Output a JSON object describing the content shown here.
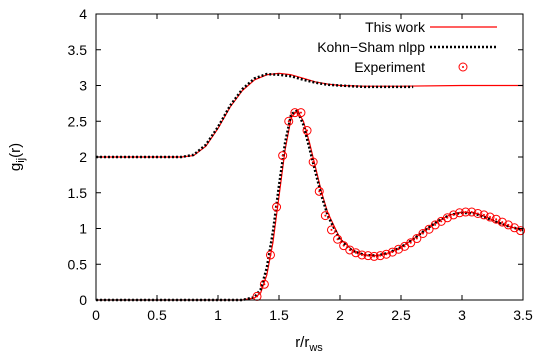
{
  "chart_data": {
    "type": "line",
    "xlabel_main": "r/r",
    "xlabel_sub": "ws",
    "ylabel_main": "g",
    "ylabel_sub": "ij",
    "ylabel_tail": "(r)",
    "xlim": [
      0,
      3.5
    ],
    "ylim": [
      0,
      4
    ],
    "x_ticks": [
      0,
      0.5,
      1,
      1.5,
      2,
      2.5,
      3,
      3.5
    ],
    "y_ticks": [
      0,
      0.5,
      1,
      1.5,
      2,
      2.5,
      3,
      3.5,
      4
    ],
    "x_tick_labels": [
      "0",
      "0.5",
      "1",
      "1.5",
      "2",
      "2.5",
      "3",
      "3.5"
    ],
    "y_tick_labels": [
      "0",
      "0.5",
      "1",
      "1.5",
      "2",
      "2.5",
      "3",
      "3.5",
      "4"
    ],
    "grid": false,
    "legend_position": "top-right",
    "colors": {
      "this_work": "#ff0000",
      "kohn_sham": "#000000",
      "experiment": "#ff0000"
    },
    "series": [
      {
        "name": "This work",
        "style": "solid",
        "note": "upper curve offset by +2",
        "x": [
          0,
          0.7,
          0.8,
          0.9,
          1.0,
          1.1,
          1.2,
          1.3,
          1.4,
          1.5,
          1.6,
          1.7,
          1.8,
          1.9,
          2.0,
          2.2,
          2.5,
          3.0,
          3.5
        ],
        "y": [
          2.0,
          2.0,
          2.02,
          2.15,
          2.4,
          2.7,
          2.93,
          3.08,
          3.15,
          3.17,
          3.15,
          3.1,
          3.05,
          3.02,
          3.0,
          2.99,
          2.99,
          3.0,
          3.0
        ]
      },
      {
        "name": "This work",
        "style": "solid",
        "x": [
          0,
          1.2,
          1.3,
          1.35,
          1.4,
          1.45,
          1.5,
          1.55,
          1.6,
          1.65,
          1.7,
          1.75,
          1.8,
          1.85,
          1.9,
          2.0,
          2.1,
          2.2,
          2.3,
          2.4,
          2.5,
          2.6,
          2.7,
          2.8,
          2.9,
          3.0,
          3.1,
          3.2,
          3.3,
          3.4,
          3.5
        ],
        "y": [
          0,
          0.0,
          0.03,
          0.1,
          0.35,
          0.8,
          1.45,
          2.1,
          2.55,
          2.65,
          2.5,
          2.2,
          1.85,
          1.5,
          1.22,
          0.86,
          0.7,
          0.63,
          0.62,
          0.66,
          0.74,
          0.85,
          0.98,
          1.1,
          1.19,
          1.23,
          1.22,
          1.16,
          1.08,
          1.02,
          0.98
        ]
      },
      {
        "name": "Kohn−Sham nlpp",
        "style": "dotted",
        "note": "upper curve offset by +2",
        "x": [
          0,
          0.7,
          0.8,
          0.9,
          1.0,
          1.1,
          1.2,
          1.3,
          1.4,
          1.5,
          1.6,
          1.7,
          1.8,
          1.9,
          2.0,
          2.2,
          2.5,
          2.6
        ],
        "y": [
          2.0,
          2.0,
          2.03,
          2.17,
          2.42,
          2.72,
          2.95,
          3.1,
          3.16,
          3.15,
          3.13,
          3.08,
          3.04,
          3.01,
          3.0,
          2.98,
          2.98,
          2.98
        ]
      },
      {
        "name": "Kohn−Sham nlpp",
        "style": "dotted",
        "x": [
          0,
          1.2,
          1.3,
          1.35,
          1.4,
          1.45,
          1.5,
          1.55,
          1.6,
          1.65,
          1.7,
          1.75,
          1.8,
          1.85,
          1.9,
          2.0,
          2.1,
          2.2,
          2.3,
          2.4,
          2.5,
          2.6,
          2.7,
          2.8,
          2.9,
          3.0,
          3.1,
          3.2,
          3.3,
          3.4,
          3.5
        ],
        "y": [
          0,
          0.0,
          0.04,
          0.15,
          0.45,
          0.95,
          1.6,
          2.2,
          2.6,
          2.65,
          2.45,
          2.12,
          1.78,
          1.45,
          1.18,
          0.84,
          0.69,
          0.63,
          0.62,
          0.66,
          0.74,
          0.85,
          0.98,
          1.1,
          1.19,
          1.22,
          1.21,
          1.15,
          1.08,
          1.02,
          0.98
        ]
      },
      {
        "name": "Experiment",
        "style": "circles",
        "x": [
          1.32,
          1.38,
          1.43,
          1.48,
          1.53,
          1.58,
          1.63,
          1.68,
          1.73,
          1.78,
          1.83,
          1.88,
          1.93,
          1.98,
          2.03,
          2.08,
          2.13,
          2.18,
          2.23,
          2.28,
          2.33,
          2.38,
          2.43,
          2.48,
          2.53,
          2.58,
          2.63,
          2.68,
          2.73,
          2.78,
          2.83,
          2.88,
          2.93,
          2.98,
          3.03,
          3.08,
          3.13,
          3.18,
          3.23,
          3.28,
          3.33,
          3.38,
          3.43,
          3.48
        ],
        "y": [
          0.05,
          0.22,
          0.63,
          1.3,
          2.02,
          2.5,
          2.62,
          2.62,
          2.37,
          1.93,
          1.52,
          1.18,
          0.98,
          0.85,
          0.76,
          0.7,
          0.66,
          0.63,
          0.62,
          0.61,
          0.62,
          0.64,
          0.67,
          0.71,
          0.75,
          0.8,
          0.86,
          0.93,
          0.99,
          1.05,
          1.1,
          1.15,
          1.19,
          1.22,
          1.23,
          1.23,
          1.21,
          1.19,
          1.16,
          1.13,
          1.09,
          1.05,
          1.01,
          0.97
        ]
      }
    ]
  },
  "legend": {
    "this_work": "This work",
    "kohn_sham": "Kohn−Sham nlpp",
    "experiment": "Experiment"
  }
}
